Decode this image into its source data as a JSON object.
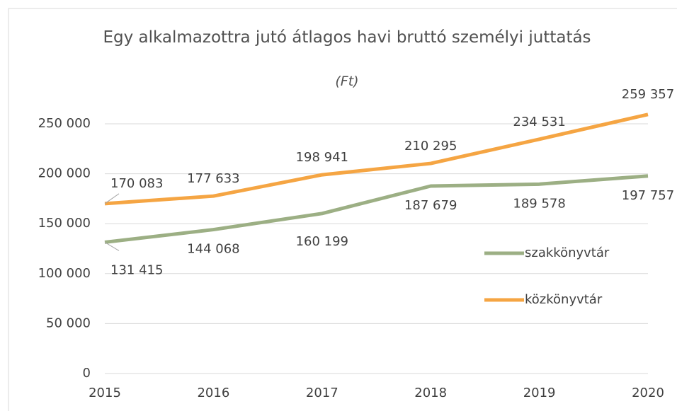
{
  "chart_data": {
    "type": "line",
    "title": "Egy alkalmazottra jutó átlagos havi bruttó személyi juttatás",
    "subtitle": "(Ft)",
    "categories": [
      "2015",
      "2016",
      "2017",
      "2018",
      "2019",
      "2020"
    ],
    "series": [
      {
        "name": "szakkönyvtár",
        "color": "#9caf84",
        "values": [
          131415,
          144068,
          160199,
          187679,
          189578,
          197757
        ],
        "value_labels": [
          "131 415",
          "144 068",
          "160 199",
          "187 679",
          "189 578",
          "197 757"
        ]
      },
      {
        "name": "közkönyvtár",
        "color": "#f5a543",
        "values": [
          170083,
          177633,
          198941,
          210295,
          234531,
          259357
        ],
        "value_labels": [
          "170 083",
          "177 633",
          "198 941",
          "210 295",
          "234 531",
          "259 357"
        ]
      }
    ],
    "ylim": [
      0,
      250000
    ],
    "yticks": [
      {
        "value": 0,
        "label": "0"
      },
      {
        "value": 50000,
        "label": "50 000"
      },
      {
        "value": 100000,
        "label": "100 000"
      },
      {
        "value": 150000,
        "label": "150 000"
      },
      {
        "value": 200000,
        "label": "200 000"
      },
      {
        "value": 250000,
        "label": "250 000"
      }
    ],
    "grid": true,
    "legend": "right"
  }
}
